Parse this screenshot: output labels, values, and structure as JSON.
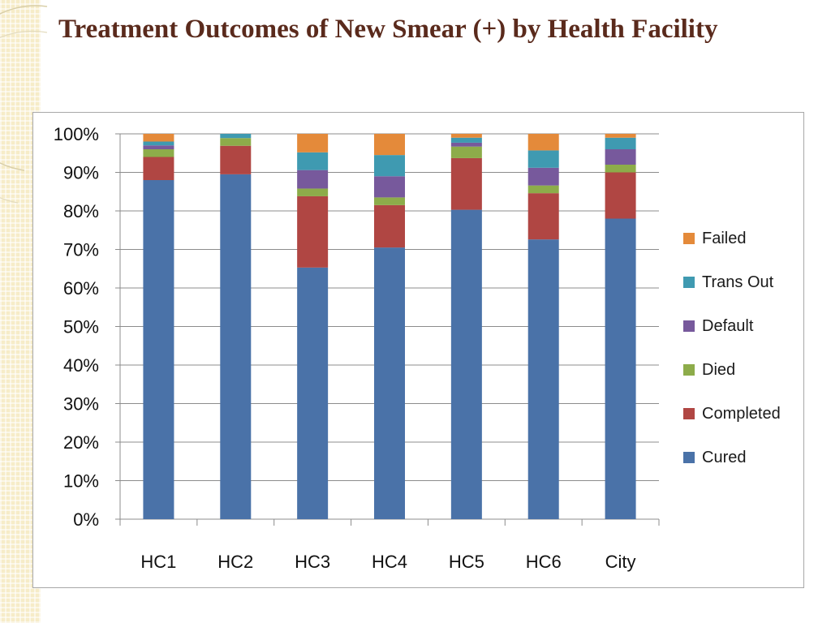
{
  "slide": {
    "title": "Treatment Outcomes of New Smear (+) by Health Facility"
  },
  "chart_data": {
    "type": "bar",
    "stacked": true,
    "percent": true,
    "title": "",
    "xlabel": "",
    "ylabel": "",
    "ylim": [
      0,
      100
    ],
    "y_ticks": [
      "0%",
      "10%",
      "20%",
      "30%",
      "40%",
      "50%",
      "60%",
      "70%",
      "80%",
      "90%",
      "100%"
    ],
    "grid": true,
    "legend_position": "right",
    "categories": [
      "HC1",
      "HC2",
      "HC3",
      "HC4",
      "HC5",
      "HC6",
      "City"
    ],
    "series": [
      {
        "name": "Cured",
        "color": "#4a72a8",
        "values": [
          88,
          89.5,
          65.3,
          70.5,
          80.3,
          72.6,
          78
        ]
      },
      {
        "name": "Completed",
        "color": "#b04643",
        "values": [
          6,
          7.4,
          18.5,
          11,
          13.4,
          12,
          12
        ]
      },
      {
        "name": "Died",
        "color": "#8dac4a",
        "values": [
          2,
          2,
          2,
          2,
          3,
          2,
          2
        ]
      },
      {
        "name": "Default",
        "color": "#77599c",
        "values": [
          1,
          0,
          4.8,
          5.5,
          1,
          4.6,
          4
        ]
      },
      {
        "name": "Trans Out",
        "color": "#3f9ab1",
        "values": [
          1,
          1.1,
          4.6,
          5.5,
          1.3,
          4.5,
          3
        ]
      },
      {
        "name": "Failed",
        "color": "#e48a3a",
        "values": [
          2,
          0,
          4.8,
          5.5,
          1,
          4.3,
          1
        ]
      }
    ]
  }
}
